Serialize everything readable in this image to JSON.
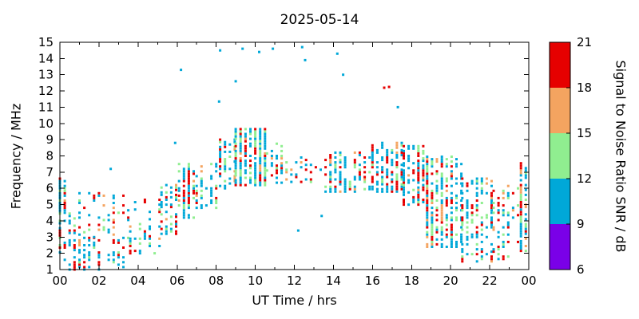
{
  "chart_data": {
    "type": "scatter",
    "title": "2025-05-14",
    "xlabel": "UT Time / hrs",
    "ylabel": "Frequency / MHz",
    "xlim": [
      0,
      24
    ],
    "ylim": [
      1,
      15
    ],
    "xtick_positions": [
      0,
      2,
      4,
      6,
      8,
      10,
      12,
      14,
      16,
      18,
      20,
      22,
      24
    ],
    "xtick_labels": [
      "00",
      "02",
      "04",
      "06",
      "08",
      "10",
      "12",
      "14",
      "16",
      "18",
      "20",
      "22",
      "00"
    ],
    "xtick_minor_positions": [
      1,
      3,
      5,
      7,
      9,
      11,
      13,
      15,
      17,
      19,
      21,
      23
    ],
    "yticks": [
      1,
      2,
      3,
      4,
      5,
      6,
      7,
      8,
      9,
      10,
      11,
      12,
      13,
      14,
      15
    ],
    "colorbar": {
      "label": "Signal to Noise Ratio SNR / dB",
      "ticks": [
        6,
        9,
        12,
        15,
        18,
        21
      ],
      "min": 6,
      "max": 21,
      "segments": [
        {
          "from": 6,
          "to": 9,
          "color": "#7a00e8"
        },
        {
          "from": 9,
          "to": 12,
          "color": "#00a8d8"
        },
        {
          "from": 12,
          "to": 15,
          "color": "#90ee90"
        },
        {
          "from": 15,
          "to": 18,
          "color": "#f4a460"
        },
        {
          "from": 18,
          "to": 21,
          "color": "#e60000"
        }
      ]
    },
    "time_step_hours": 0.25,
    "freq_step_mhz": 0.15,
    "snr_mix": [
      {
        "snr": 10.5,
        "weight": 0.46
      },
      {
        "snr": 13.5,
        "weight": 0.22
      },
      {
        "snr": 16.5,
        "weight": 0.09
      },
      {
        "snr": 19.5,
        "weight": 0.23
      }
    ],
    "density_bands": [
      {
        "t0": 0.0,
        "t1": 0.5,
        "f0": 4.5,
        "f1": 6.6,
        "density": 0.8
      },
      {
        "t0": 0.0,
        "t1": 1.0,
        "f0": 1.0,
        "f1": 4.5,
        "density": 0.45
      },
      {
        "t0": 1.0,
        "t1": 3.6,
        "f0": 1.0,
        "f1": 3.0,
        "density": 0.4
      },
      {
        "t0": 1.0,
        "t1": 3.6,
        "f0": 3.0,
        "f1": 5.8,
        "density": 0.28
      },
      {
        "t0": 3.6,
        "t1": 5.2,
        "f0": 2.0,
        "f1": 5.5,
        "density": 0.22
      },
      {
        "t0": 5.2,
        "t1": 6.1,
        "f0": 3.2,
        "f1": 6.3,
        "density": 0.45
      },
      {
        "t0": 6.1,
        "t1": 7.0,
        "f0": 4.2,
        "f1": 7.5,
        "density": 0.65
      },
      {
        "t0": 7.0,
        "t1": 8.2,
        "f0": 4.8,
        "f1": 7.6,
        "density": 0.45
      },
      {
        "t0": 8.2,
        "t1": 9.0,
        "f0": 6.0,
        "f1": 9.0,
        "density": 0.65
      },
      {
        "t0": 9.0,
        "t1": 10.6,
        "f0": 6.2,
        "f1": 9.7,
        "density": 0.8
      },
      {
        "t0": 10.6,
        "t1": 11.6,
        "f0": 6.2,
        "f1": 8.8,
        "density": 0.6
      },
      {
        "t0": 11.6,
        "t1": 13.6,
        "f0": 6.4,
        "f1": 8.0,
        "density": 0.35
      },
      {
        "t0": 13.6,
        "t1": 16.0,
        "f0": 5.8,
        "f1": 8.2,
        "density": 0.6
      },
      {
        "t0": 16.0,
        "t1": 17.6,
        "f0": 5.8,
        "f1": 8.9,
        "density": 0.6
      },
      {
        "t0": 17.6,
        "t1": 18.8,
        "f0": 5.0,
        "f1": 8.6,
        "density": 0.75
      },
      {
        "t0": 18.8,
        "t1": 20.6,
        "f0": 2.4,
        "f1": 8.0,
        "density": 0.7
      },
      {
        "t0": 20.6,
        "t1": 22.2,
        "f0": 1.5,
        "f1": 6.6,
        "density": 0.45
      },
      {
        "t0": 22.2,
        "t1": 23.6,
        "f0": 1.5,
        "f1": 6.2,
        "density": 0.35
      },
      {
        "t0": 23.6,
        "t1": 24.0,
        "f0": 2.0,
        "f1": 7.6,
        "density": 0.7
      }
    ],
    "isolated_points": [
      {
        "t": 2.6,
        "f": 7.2,
        "snr": 10
      },
      {
        "t": 5.9,
        "f": 8.8,
        "snr": 10
      },
      {
        "t": 6.2,
        "f": 13.3,
        "snr": 10
      },
      {
        "t": 8.15,
        "f": 11.35,
        "snr": 10
      },
      {
        "t": 8.2,
        "f": 14.5,
        "snr": 10
      },
      {
        "t": 9.0,
        "f": 12.6,
        "snr": 10
      },
      {
        "t": 9.35,
        "f": 14.6,
        "snr": 10
      },
      {
        "t": 10.2,
        "f": 14.4,
        "snr": 10
      },
      {
        "t": 10.9,
        "f": 14.6,
        "snr": 10
      },
      {
        "t": 12.4,
        "f": 14.7,
        "snr": 10
      },
      {
        "t": 12.55,
        "f": 13.9,
        "snr": 10
      },
      {
        "t": 12.2,
        "f": 3.4,
        "snr": 10
      },
      {
        "t": 13.4,
        "f": 4.3,
        "snr": 10
      },
      {
        "t": 14.2,
        "f": 14.3,
        "snr": 10
      },
      {
        "t": 14.5,
        "f": 13.0,
        "snr": 10
      },
      {
        "t": 16.6,
        "f": 12.2,
        "snr": 20
      },
      {
        "t": 16.85,
        "f": 12.25,
        "snr": 19
      },
      {
        "t": 17.3,
        "f": 11.0,
        "snr": 10
      }
    ]
  }
}
